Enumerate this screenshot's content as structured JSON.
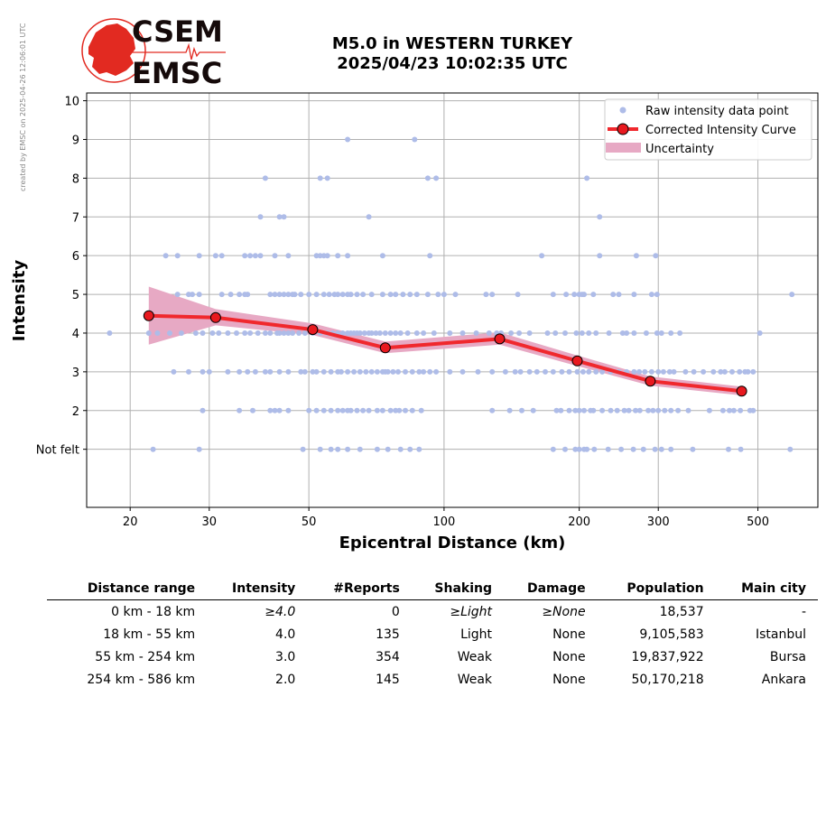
{
  "watermark": "created by EMSC on 2025-04-26 12:06:01 UTC",
  "logo": {
    "line1": "CSEM",
    "line2": "EMSC"
  },
  "title": {
    "line1": "M5.0 in WESTERN TURKEY",
    "line2": "2025/04/23 10:02:35 UTC"
  },
  "colors": {
    "raw": "#aebce8",
    "curve": "#f0282d",
    "marker": "#e8191f",
    "band": "#e7a9c4",
    "logo_red": "#e22a21"
  },
  "chart_data": {
    "type": "scatter",
    "xlabel": "Epicentral Distance (km)",
    "ylabel": "Intensity",
    "xscale": "log",
    "xlim": [
      16,
      680
    ],
    "ylim": [
      -0.5,
      10.2
    ],
    "xticks": [
      20,
      30,
      50,
      100,
      200,
      300,
      500
    ],
    "yticks": [
      {
        "value": 1,
        "label": "Not felt"
      },
      {
        "value": 2,
        "label": "2"
      },
      {
        "value": 3,
        "label": "3"
      },
      {
        "value": 4,
        "label": "4"
      },
      {
        "value": 5,
        "label": "5"
      },
      {
        "value": 6,
        "label": "6"
      },
      {
        "value": 7,
        "label": "7"
      },
      {
        "value": 8,
        "label": "8"
      },
      {
        "value": 9,
        "label": "9"
      },
      {
        "value": 10,
        "label": "10"
      }
    ],
    "grid": true,
    "legend_position": "top-right",
    "legend": [
      {
        "key": "raw",
        "label": "Raw intensity data point"
      },
      {
        "key": "curve",
        "label": "Corrected Intensity Curve"
      },
      {
        "key": "band",
        "label": "Uncertainty"
      }
    ],
    "curve": {
      "x": [
        22.0,
        31.0,
        51.0,
        74.0,
        133.0,
        198.0,
        288.0,
        460.0
      ],
      "y": [
        4.45,
        4.4,
        4.09,
        3.62,
        3.85,
        3.28,
        2.76,
        2.5
      ]
    },
    "uncertainty": {
      "x": [
        22.0,
        31.0,
        51.0,
        74.0,
        133.0,
        198.0,
        288.0,
        460.0
      ],
      "upper": [
        5.2,
        4.62,
        4.25,
        3.78,
        4.02,
        3.42,
        2.88,
        2.62
      ],
      "lower": [
        3.7,
        4.2,
        3.95,
        3.48,
        3.7,
        3.15,
        2.64,
        2.39
      ]
    },
    "raw_points": [
      {
        "y": 10,
        "x": []
      },
      {
        "y": 9,
        "x": [
          61,
          86
        ]
      },
      {
        "y": 8,
        "x": [
          40,
          53,
          55,
          92,
          96,
          208
        ]
      },
      {
        "y": 7,
        "x": [
          39,
          43,
          44,
          68,
          222
        ]
      },
      {
        "y": 6,
        "x": [
          24,
          25.5,
          28.5,
          31,
          32,
          36,
          37,
          38,
          39,
          42,
          45,
          52,
          53,
          54,
          55,
          58,
          61,
          73,
          93,
          165,
          222,
          268,
          296
        ]
      },
      {
        "y": 5,
        "x": [
          25.5,
          27,
          27.5,
          28.5,
          32,
          33.5,
          35,
          36,
          36.5,
          41,
          42,
          43,
          44,
          45,
          46,
          46.5,
          48,
          50,
          52,
          54,
          55.5,
          57,
          58,
          59.5,
          61,
          62,
          64,
          66,
          69,
          73,
          76,
          78,
          81,
          84,
          87,
          92,
          97,
          100,
          106,
          124,
          128,
          146,
          175,
          187,
          195,
          200,
          203,
          205,
          215,
          238,
          245,
          265,
          290,
          298,
          595
        ]
      },
      {
        "y": 4,
        "x": [
          18,
          22,
          23,
          24.5,
          26,
          28,
          29,
          30.5,
          31.5,
          33,
          34.5,
          36,
          37,
          38.5,
          40,
          41,
          42.5,
          43,
          44,
          45,
          46,
          47.5,
          49,
          51,
          53,
          55,
          56.5,
          58,
          59.5,
          61,
          62,
          63,
          64,
          65,
          66.5,
          68,
          69,
          70.5,
          72,
          74,
          76,
          78,
          80,
          83,
          87,
          90,
          95,
          103,
          110,
          118,
          126,
          131,
          134,
          141,
          147,
          155,
          170,
          177,
          186,
          197,
          203,
          210,
          218,
          233,
          250,
          255,
          265,
          282,
          298,
          305,
          320,
          335,
          505
        ]
      },
      {
        "y": 3,
        "x": [
          25,
          27,
          29,
          30,
          33,
          35,
          36.5,
          38,
          40,
          41,
          43,
          45,
          48,
          49,
          51,
          52,
          54,
          56,
          58,
          59,
          61,
          63,
          65,
          67,
          69,
          71,
          73,
          74,
          75,
          77,
          79,
          82,
          85,
          88,
          90,
          93,
          96,
          103,
          110,
          119,
          128,
          137,
          144,
          148,
          155,
          161,
          168,
          175,
          183,
          190,
          198,
          204,
          210,
          218,
          225,
          235,
          245,
          255,
          265,
          272,
          280,
          290,
          300,
          308,
          318,
          325,
          345,
          360,
          378,
          398,
          413,
          422,
          438,
          455,
          468,
          475,
          488
        ]
      },
      {
        "y": 2,
        "x": [
          29,
          35,
          37.5,
          41,
          42,
          43,
          45,
          50,
          52,
          54,
          56,
          58,
          59.5,
          61,
          62,
          64,
          66,
          68,
          71,
          73,
          76,
          78,
          79.5,
          82,
          85,
          89,
          128,
          140,
          149,
          158,
          178,
          182,
          190,
          196,
          200,
          205,
          212,
          215,
          225,
          235,
          243,
          252,
          258,
          267,
          273,
          285,
          292,
          300,
          310,
          320,
          332,
          350,
          390,
          418,
          432,
          442,
          457,
          480,
          488
        ]
      },
      {
        "y": 1,
        "x": [
          22.5,
          28.5,
          48.5,
          53,
          56,
          58,
          61,
          65,
          71,
          75,
          80,
          84,
          88,
          175,
          186,
          196,
          200,
          205,
          208,
          216,
          232,
          248,
          264,
          278,
          295,
          305,
          320,
          358,
          430,
          458,
          590
        ]
      }
    ]
  },
  "table": {
    "headers": [
      "Distance range",
      "Intensity",
      "#Reports",
      "Shaking",
      "Damage",
      "Population",
      "Main city"
    ],
    "rows": [
      [
        "0 km -   18 km",
        "≥4.0",
        "0",
        "≥Light",
        "≥None",
        "18,537",
        "-"
      ],
      [
        "18 km -   55 km",
        "4.0",
        "135",
        "Light",
        "None",
        "9,105,583",
        "Istanbul"
      ],
      [
        "55 km -  254 km",
        "3.0",
        "354",
        "Weak",
        "None",
        "19,837,922",
        "Bursa"
      ],
      [
        "254 km -  586 km",
        "2.0",
        "145",
        "Weak",
        "None",
        "50,170,218",
        "Ankara"
      ]
    ]
  }
}
